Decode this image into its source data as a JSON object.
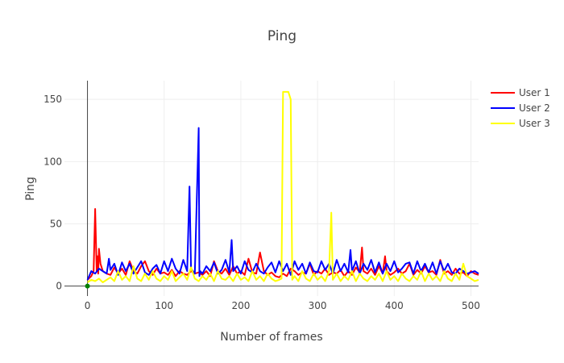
{
  "chart_data": {
    "type": "line",
    "title": "Ping",
    "xlabel": "Number of frames",
    "ylabel": "Ping",
    "xlim": [
      -30,
      510
    ],
    "ylim": [
      -8,
      165
    ],
    "xticks": [
      0,
      100,
      200,
      300,
      400,
      500
    ],
    "yticks": [
      0,
      50,
      100,
      150
    ],
    "grid": true,
    "legend_position": "top-right",
    "series": [
      {
        "name": "User 1",
        "color": "#ff0000",
        "x": [
          0,
          5,
          8,
          10,
          12,
          13,
          14,
          15,
          17,
          20,
          25,
          30,
          35,
          40,
          45,
          50,
          55,
          60,
          65,
          70,
          75,
          80,
          85,
          90,
          95,
          100,
          105,
          110,
          115,
          120,
          125,
          130,
          135,
          140,
          145,
          150,
          155,
          160,
          165,
          170,
          175,
          180,
          185,
          190,
          195,
          200,
          205,
          210,
          215,
          220,
          225,
          230,
          235,
          240,
          245,
          250,
          255,
          260,
          265,
          270,
          275,
          280,
          285,
          290,
          295,
          300,
          305,
          310,
          315,
          320,
          325,
          330,
          335,
          340,
          345,
          350,
          355,
          358,
          360,
          365,
          370,
          375,
          380,
          385,
          388,
          390,
          395,
          400,
          405,
          410,
          415,
          420,
          425,
          430,
          435,
          440,
          445,
          450,
          455,
          460,
          465,
          470,
          475,
          480,
          485,
          490,
          495,
          500,
          505,
          510
        ],
        "values": [
          5,
          8,
          12,
          62,
          12,
          24,
          10,
          30,
          18,
          12,
          10,
          9,
          15,
          10,
          14,
          9,
          20,
          12,
          10,
          16,
          20,
          12,
          9,
          14,
          10,
          11,
          9,
          13,
          8,
          12,
          10,
          9,
          12,
          10,
          11,
          9,
          12,
          8,
          20,
          12,
          10,
          14,
          9,
          16,
          10,
          12,
          9,
          22,
          11,
          10,
          27,
          12,
          9,
          11,
          8,
          7,
          10,
          8,
          14,
          12,
          9,
          11,
          10,
          18,
          9,
          12,
          10,
          14,
          9,
          11,
          10,
          13,
          8,
          12,
          9,
          15,
          11,
          31,
          12,
          10,
          14,
          9,
          16,
          10,
          24,
          12,
          9,
          11,
          14,
          10,
          12,
          18,
          9,
          13,
          10,
          16,
          11,
          12,
          9,
          21,
          10,
          12,
          9,
          14,
          10,
          11,
          8,
          12,
          10,
          9
        ]
      },
      {
        "name": "User 2",
        "color": "#0000ff",
        "x": [
          0,
          5,
          10,
          15,
          20,
          25,
          28,
          30,
          35,
          40,
          45,
          50,
          55,
          60,
          65,
          70,
          75,
          80,
          85,
          90,
          95,
          100,
          105,
          110,
          115,
          120,
          125,
          130,
          133,
          135,
          140,
          145,
          146,
          147,
          150,
          155,
          160,
          165,
          170,
          175,
          180,
          185,
          188,
          190,
          195,
          200,
          205,
          210,
          215,
          220,
          225,
          230,
          235,
          240,
          245,
          250,
          255,
          260,
          265,
          270,
          275,
          280,
          285,
          290,
          295,
          300,
          305,
          310,
          315,
          320,
          325,
          330,
          335,
          340,
          343,
          345,
          350,
          355,
          360,
          365,
          370,
          375,
          380,
          385,
          390,
          395,
          400,
          405,
          410,
          415,
          420,
          425,
          430,
          435,
          440,
          445,
          450,
          455,
          460,
          465,
          470,
          475,
          480,
          485,
          490,
          495,
          500,
          505,
          510
        ],
        "values": [
          5,
          12,
          10,
          14,
          12,
          10,
          22,
          13,
          18,
          9,
          19,
          12,
          18,
          10,
          15,
          20,
          11,
          9,
          14,
          17,
          10,
          20,
          12,
          22,
          14,
          10,
          21,
          12,
          80,
          14,
          10,
          127,
          8,
          12,
          10,
          16,
          12,
          19,
          10,
          13,
          21,
          11,
          37,
          12,
          16,
          10,
          20,
          13,
          11,
          18,
          12,
          10,
          15,
          19,
          11,
          20,
          12,
          18,
          9,
          20,
          13,
          18,
          10,
          19,
          12,
          11,
          20,
          13,
          18,
          10,
          21,
          12,
          18,
          11,
          29,
          12,
          20,
          10,
          18,
          13,
          21,
          11,
          19,
          10,
          18,
          12,
          20,
          11,
          14,
          18,
          19,
          10,
          20,
          12,
          18,
          11,
          19,
          10,
          20,
          12,
          18,
          11,
          10,
          14,
          12,
          10,
          11,
          12,
          10
        ]
      },
      {
        "name": "User 3",
        "color": "#ffff00",
        "x": [
          0,
          5,
          10,
          15,
          20,
          25,
          30,
          35,
          40,
          45,
          50,
          55,
          60,
          65,
          70,
          75,
          80,
          85,
          90,
          95,
          100,
          105,
          110,
          115,
          120,
          125,
          130,
          135,
          140,
          145,
          150,
          155,
          160,
          165,
          170,
          175,
          180,
          185,
          190,
          195,
          200,
          205,
          210,
          215,
          220,
          225,
          230,
          235,
          240,
          245,
          250,
          253,
          255,
          258,
          262,
          265,
          267,
          270,
          275,
          280,
          285,
          290,
          295,
          300,
          305,
          310,
          315,
          318,
          320,
          325,
          330,
          335,
          340,
          345,
          350,
          355,
          360,
          365,
          370,
          375,
          380,
          385,
          390,
          395,
          400,
          405,
          410,
          415,
          420,
          425,
          430,
          435,
          440,
          445,
          450,
          455,
          460,
          465,
          470,
          475,
          480,
          485,
          490,
          495,
          500,
          505,
          510
        ],
        "values": [
          3,
          5,
          4,
          6,
          3,
          5,
          7,
          4,
          12,
          5,
          8,
          4,
          16,
          6,
          4,
          10,
          5,
          12,
          6,
          4,
          8,
          5,
          12,
          4,
          7,
          10,
          5,
          15,
          6,
          4,
          8,
          5,
          10,
          4,
          12,
          6,
          5,
          8,
          4,
          10,
          5,
          7,
          4,
          12,
          5,
          8,
          4,
          10,
          6,
          4,
          5,
          6,
          156,
          156,
          156,
          150,
          5,
          8,
          4,
          12,
          6,
          4,
          10,
          5,
          8,
          4,
          12,
          59,
          5,
          10,
          4,
          8,
          5,
          12,
          4,
          10,
          6,
          4,
          8,
          5,
          10,
          4,
          12,
          5,
          8,
          4,
          10,
          6,
          4,
          8,
          5,
          12,
          4,
          10,
          5,
          8,
          4,
          12,
          6,
          4,
          10,
          5,
          18,
          8,
          6,
          4,
          5
        ]
      }
    ],
    "extra_points": [
      {
        "x": 0,
        "y": 0,
        "color": "#008000"
      }
    ]
  }
}
